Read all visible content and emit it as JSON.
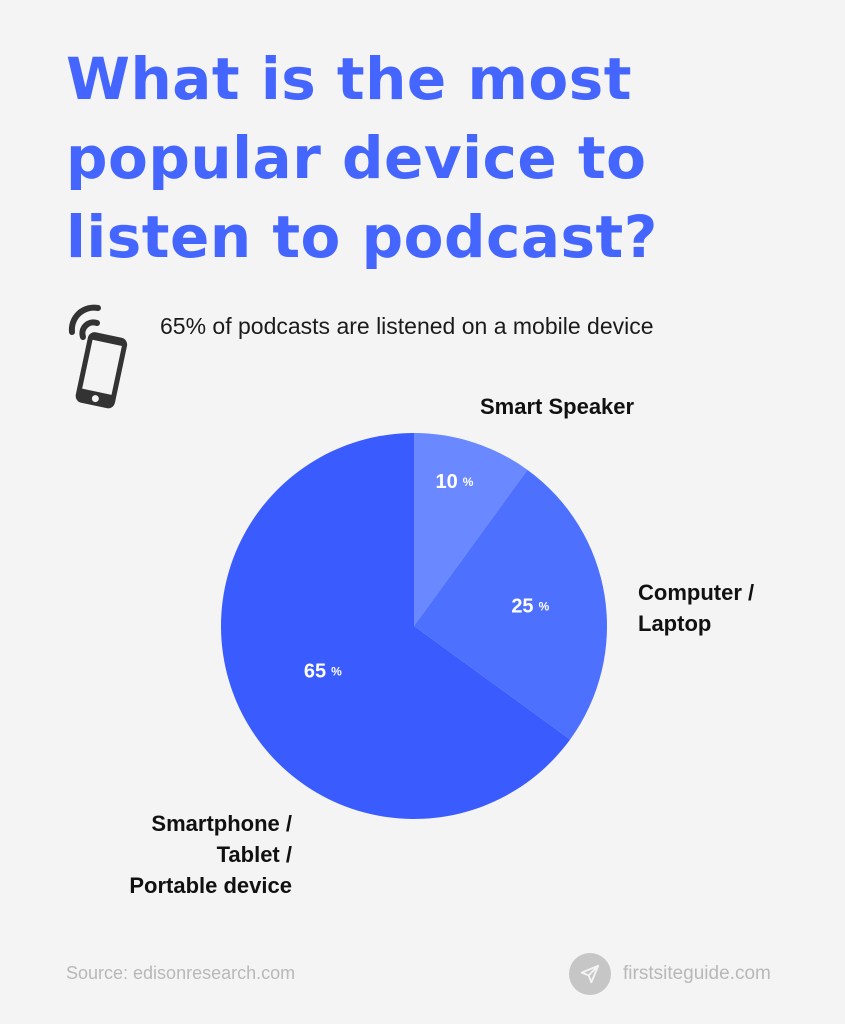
{
  "title": {
    "line1": "What is the most",
    "line2": "popular device to",
    "line3": "listen to podcast?"
  },
  "subtitle": "65% of podcasts are listened on a mobile device",
  "icons": {
    "header": "mobile-phone-signal-icon",
    "footer": "paper-plane-icon"
  },
  "colors": {
    "title": "#4466ff",
    "smart_speaker": "#6a88ff",
    "computer_laptop": "#4d70ff",
    "smartphone": "#3a5cff"
  },
  "chart_data": {
    "type": "pie",
    "categories": [
      "Smart Speaker",
      "Computer / Laptop",
      "Smartphone / Tablet / Portable device"
    ],
    "values": [
      10,
      25,
      65
    ],
    "value_labels": [
      "10",
      "25",
      "65"
    ],
    "unit": "%",
    "labels": {
      "smart_speaker": [
        "Smart Speaker"
      ],
      "computer_laptop": [
        "Computer /",
        "Laptop"
      ],
      "smartphone": [
        "Smartphone /",
        "Tablet /",
        "Portable device"
      ]
    }
  },
  "footer": {
    "source": "Source: edisonresearch.com",
    "brand": "firstsiteguide.com"
  }
}
